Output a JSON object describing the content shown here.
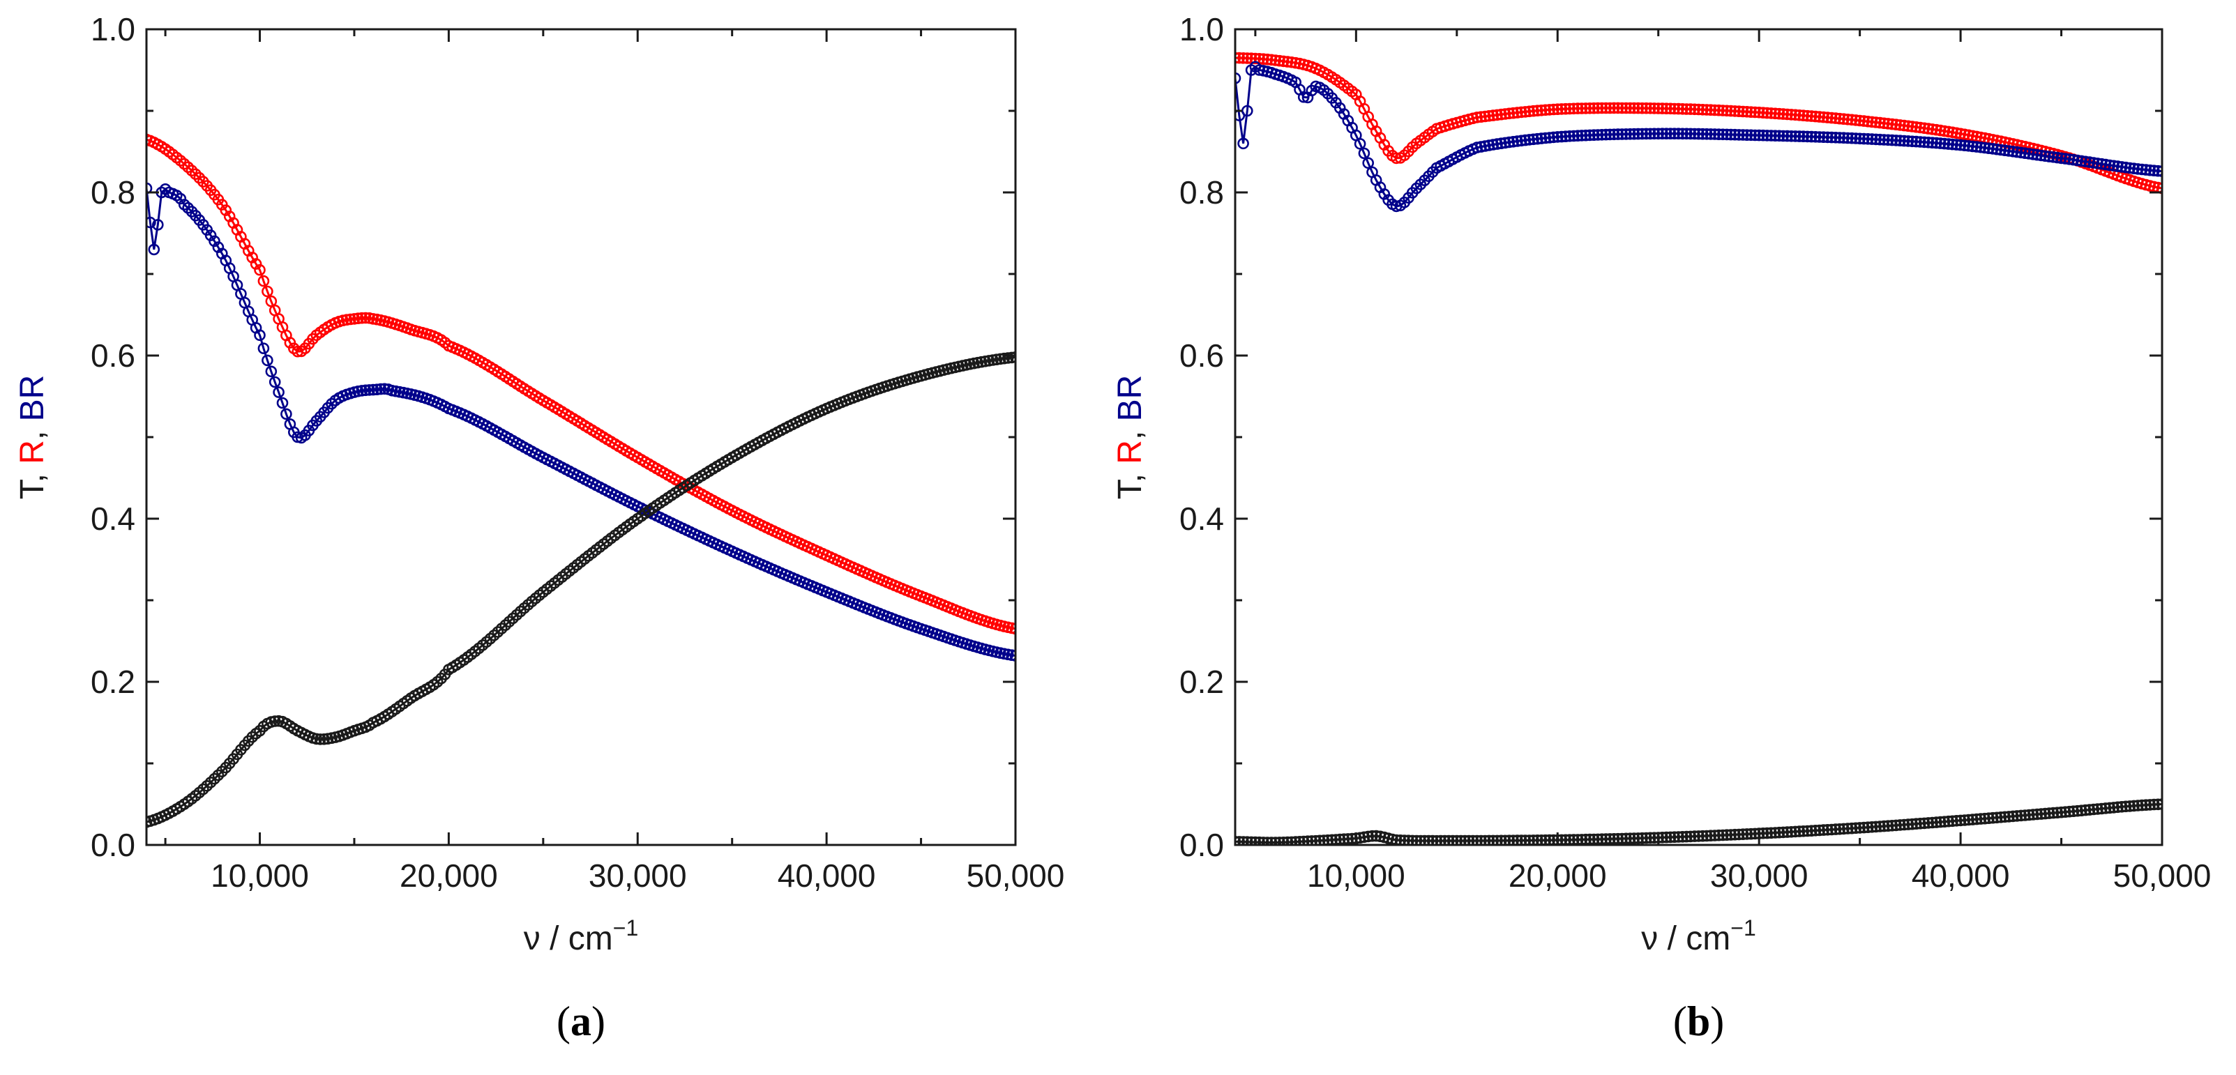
{
  "colors": {
    "T": "#1a1a1a",
    "R": "#ff0000",
    "BR": "#00008b",
    "axis": "#1a1a1a"
  },
  "chart_data": [
    {
      "type": "scatter",
      "panel_label": "a",
      "xlabel": "ν / cm",
      "xlabel_sup": "−1",
      "ylabel_parts": [
        {
          "text": "T",
          "series": "T"
        },
        {
          "text": ", ",
          "series": "T"
        },
        {
          "text": "R",
          "series": "R"
        },
        {
          "text": ", ",
          "series": "T"
        },
        {
          "text": "BR",
          "series": "BR"
        }
      ],
      "xlim": [
        4000,
        50000
      ],
      "ylim": [
        0,
        1
      ],
      "xticks": [
        10000,
        20000,
        30000,
        40000,
        50000
      ],
      "xtick_labels": [
        "10,000",
        "20,000",
        "30,000",
        "40,000",
        "50,000"
      ],
      "yticks": [
        0,
        0.2,
        0.4,
        0.6,
        0.8,
        1.0
      ],
      "ytick_labels": [
        "0.0",
        "0.2",
        "0.4",
        "0.6",
        "0.8",
        "1.0"
      ],
      "series": [
        {
          "name": "R",
          "color_key": "R",
          "x": [
            4000,
            6000,
            8000,
            10000,
            11000,
            12000,
            13000,
            14000,
            15000,
            16000,
            18000,
            20000,
            25000,
            30000,
            35000,
            40000,
            45000,
            50000
          ],
          "y": [
            0.865,
            0.835,
            0.785,
            0.705,
            0.645,
            0.605,
            0.625,
            0.64,
            0.645,
            0.645,
            0.632,
            0.612,
            0.545,
            0.475,
            0.41,
            0.355,
            0.305,
            0.265
          ]
        },
        {
          "name": "BR",
          "color_key": "BR",
          "x": [
            4000,
            4400,
            4800,
            5200,
            6000,
            8000,
            10000,
            11000,
            12000,
            13000,
            14000,
            15000,
            16000,
            17000,
            20000,
            25000,
            30000,
            35000,
            40000,
            45000,
            50000
          ],
          "y": [
            0.805,
            0.73,
            0.8,
            0.8,
            0.785,
            0.725,
            0.625,
            0.555,
            0.5,
            0.52,
            0.545,
            0.555,
            0.558,
            0.557,
            0.535,
            0.475,
            0.415,
            0.36,
            0.31,
            0.265,
            0.232
          ]
        },
        {
          "name": "T",
          "color_key": "T",
          "x": [
            4000,
            6000,
            8000,
            10000,
            11000,
            12000,
            13000,
            14000,
            15000,
            16000,
            18000,
            20000,
            25000,
            30000,
            35000,
            40000,
            45000,
            50000
          ],
          "y": [
            0.028,
            0.05,
            0.09,
            0.14,
            0.152,
            0.14,
            0.13,
            0.132,
            0.14,
            0.15,
            0.18,
            0.215,
            0.31,
            0.4,
            0.475,
            0.535,
            0.575,
            0.598
          ]
        }
      ]
    },
    {
      "type": "scatter",
      "panel_label": "b",
      "xlabel": "ν / cm",
      "xlabel_sup": "−1",
      "ylabel_parts": [
        {
          "text": "T",
          "series": "T"
        },
        {
          "text": ", ",
          "series": "T"
        },
        {
          "text": "R",
          "series": "R"
        },
        {
          "text": ", ",
          "series": "T"
        },
        {
          "text": "BR",
          "series": "BR"
        }
      ],
      "xlim": [
        4000,
        50000
      ],
      "ylim": [
        0,
        1
      ],
      "xticks": [
        10000,
        20000,
        30000,
        40000,
        50000
      ],
      "xtick_labels": [
        "10,000",
        "20,000",
        "30,000",
        "40,000",
        "50,000"
      ],
      "yticks": [
        0,
        0.2,
        0.4,
        0.6,
        0.8,
        1.0
      ],
      "ytick_labels": [
        "0.0",
        "0.2",
        "0.4",
        "0.6",
        "0.8",
        "1.0"
      ],
      "series": [
        {
          "name": "R",
          "color_key": "R",
          "x": [
            4000,
            6000,
            8000,
            10000,
            11000,
            12000,
            13000,
            14000,
            16000,
            20000,
            25000,
            30000,
            35000,
            40000,
            45000,
            50000
          ],
          "y": [
            0.965,
            0.962,
            0.952,
            0.92,
            0.875,
            0.842,
            0.86,
            0.878,
            0.892,
            0.902,
            0.903,
            0.898,
            0.888,
            0.872,
            0.845,
            0.805
          ]
        },
        {
          "name": "BR",
          "color_key": "BR",
          "x": [
            4000,
            4400,
            4800,
            5200,
            6000,
            7000,
            7500,
            8000,
            9000,
            10000,
            11000,
            12000,
            13000,
            14000,
            16000,
            20000,
            25000,
            30000,
            35000,
            40000,
            45000,
            50000
          ],
          "y": [
            0.94,
            0.86,
            0.95,
            0.95,
            0.945,
            0.935,
            0.915,
            0.93,
            0.91,
            0.87,
            0.815,
            0.783,
            0.805,
            0.83,
            0.855,
            0.868,
            0.872,
            0.87,
            0.866,
            0.858,
            0.842,
            0.826
          ]
        },
        {
          "name": "T",
          "color_key": "T",
          "x": [
            4000,
            6000,
            8000,
            10000,
            11000,
            12000,
            14000,
            20000,
            25000,
            30000,
            35000,
            40000,
            45000,
            50000
          ],
          "y": [
            0.004,
            0.003,
            0.005,
            0.008,
            0.011,
            0.006,
            0.005,
            0.006,
            0.009,
            0.014,
            0.021,
            0.03,
            0.04,
            0.05
          ]
        }
      ]
    }
  ]
}
